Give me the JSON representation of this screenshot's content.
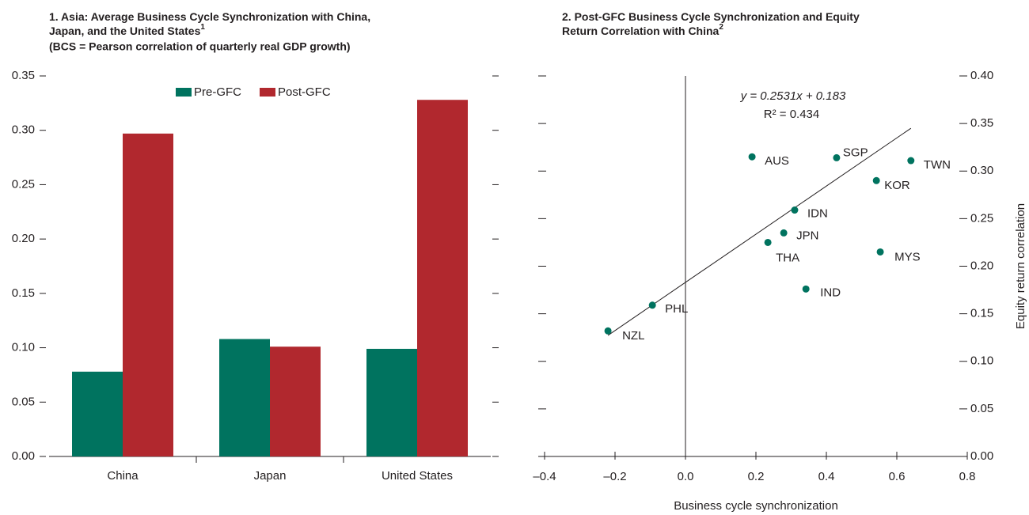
{
  "chart_data": [
    {
      "type": "bar",
      "title": [
        "1. Asia: Average Business Cycle Synchronization with China,",
        "Japan, and the United States"
      ],
      "title_note": "1",
      "subtitle": "(BCS = Pearson correlation of quarterly real GDP growth)",
      "categories": [
        "China",
        "Japan",
        "United States"
      ],
      "series": [
        {
          "name": "Pre-GFC",
          "color": "#00735f",
          "values": [
            0.078,
            0.108,
            0.099
          ]
        },
        {
          "name": "Post-GFC",
          "color": "#b1282e",
          "values": [
            0.297,
            0.101,
            0.328
          ]
        }
      ],
      "ylim": [
        0,
        0.35
      ],
      "yticks": [
        {
          "value": 0,
          "label": "0.00"
        },
        0.05,
        {
          "value": 0.1,
          "label": "0.10"
        },
        0.15,
        {
          "value": 0.2,
          "label": "0.20"
        },
        0.25,
        {
          "value": 0.3,
          "label": "0.30"
        },
        0.35
      ]
    },
    {
      "type": "scatter",
      "title": [
        "2. Post-GFC Business Cycle Synchronization and Equity",
        "Return Correlation with China"
      ],
      "title_note": "2",
      "xlabel": "Business cycle synchronization",
      "ylabel": "Equity return correlation",
      "color": "#00735f",
      "labels": [
        "AUS",
        "SGP",
        "TWN",
        "KOR",
        "IDN",
        "JPN",
        "THA",
        "MYS",
        "IND",
        "PHL",
        "NZL"
      ],
      "x": [
        0.189,
        0.429,
        0.64,
        0.542,
        0.31,
        0.279,
        0.234,
        0.553,
        0.342,
        -0.094,
        -0.22
      ],
      "values": [
        0.315,
        0.314,
        0.311,
        0.29,
        0.259,
        0.235,
        0.225,
        0.215,
        0.176,
        0.159,
        0.132
      ],
      "fit": {
        "slope": 0.2531,
        "intercept": 0.183,
        "equation": "y = 0.2531x + 0.183",
        "r2": "R² = 0.434"
      },
      "xlim": [
        -0.4,
        0.8
      ],
      "xticks": [
        {
          "value": -0.4,
          "label": "–0.4"
        },
        {
          "value": -0.2,
          "label": "–0.2"
        },
        {
          "value": 0,
          "label": "0.0"
        },
        0.2,
        0.4,
        0.6,
        0.8
      ],
      "ylim": [
        0,
        0.4
      ],
      "yticks": [
        {
          "value": 0,
          "label": "0.00"
        },
        0.05,
        {
          "value": 0.1,
          "label": "0.10"
        },
        0.15,
        {
          "value": 0.2,
          "label": "0.20"
        },
        0.25,
        {
          "value": 0.3,
          "label": "0.30"
        },
        0.35,
        {
          "value": 0.4,
          "label": "0.40"
        }
      ]
    }
  ]
}
